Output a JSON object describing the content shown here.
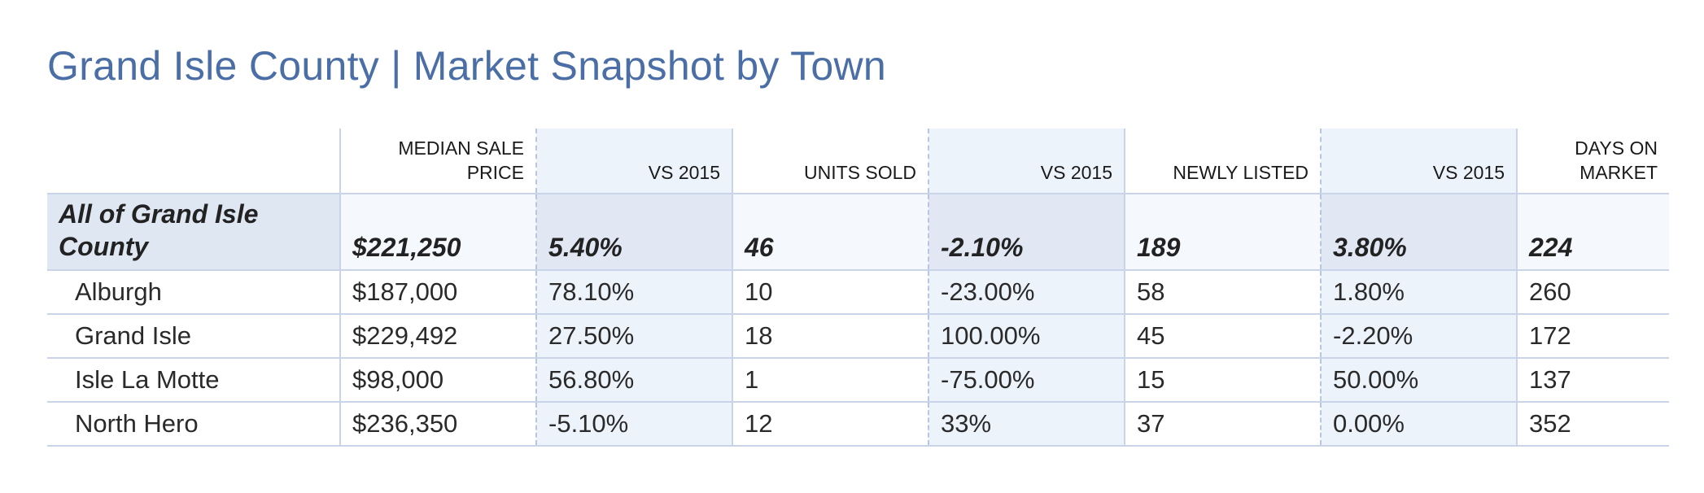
{
  "title": "Grand Isle County | Market Snapshot by Town",
  "headers": {
    "median_sale_price": "MEDIAN SALE PRICE",
    "vs_2015_a": "VS 2015",
    "units_sold": "UNITS SOLD",
    "vs_2015_b": "VS 2015",
    "newly_listed": "NEWLY LISTED",
    "vs_2015_c": "VS 2015",
    "days_on_market": "DAYS ON MARKET"
  },
  "summary": {
    "town": "All of Grand Isle County",
    "median_sale_price": "$221,250",
    "price_vs_2015": "5.40%",
    "units_sold": "46",
    "units_vs_2015": "-2.10%",
    "newly_listed": "189",
    "listed_vs_2015": "3.80%",
    "days_on_market": "224"
  },
  "rows": [
    {
      "town": "Alburgh",
      "median_sale_price": "$187,000",
      "price_vs_2015": "78.10%",
      "units_sold": "10",
      "units_vs_2015": "-23.00%",
      "newly_listed": "58",
      "listed_vs_2015": "1.80%",
      "days_on_market": "260"
    },
    {
      "town": "Grand Isle",
      "median_sale_price": "$229,492",
      "price_vs_2015": "27.50%",
      "units_sold": "18",
      "units_vs_2015": "100.00%",
      "newly_listed": "45",
      "listed_vs_2015": "-2.20%",
      "days_on_market": "172"
    },
    {
      "town": "Isle La Motte",
      "median_sale_price": "$98,000",
      "price_vs_2015": "56.80%",
      "units_sold": "1",
      "units_vs_2015": "-75.00%",
      "newly_listed": "15",
      "listed_vs_2015": "50.00%",
      "days_on_market": "137"
    },
    {
      "town": "North Hero",
      "median_sale_price": "$236,350",
      "price_vs_2015": "-5.10%",
      "units_sold": "12",
      "units_vs_2015": "33%",
      "newly_listed": "37",
      "listed_vs_2015": "0.00%",
      "days_on_market": "352"
    }
  ],
  "colors": {
    "title": "#4a6ea5",
    "rule": "#c9d4e8",
    "shade": "#edf3fb",
    "summary_town_bg": "#dfe7f3"
  }
}
